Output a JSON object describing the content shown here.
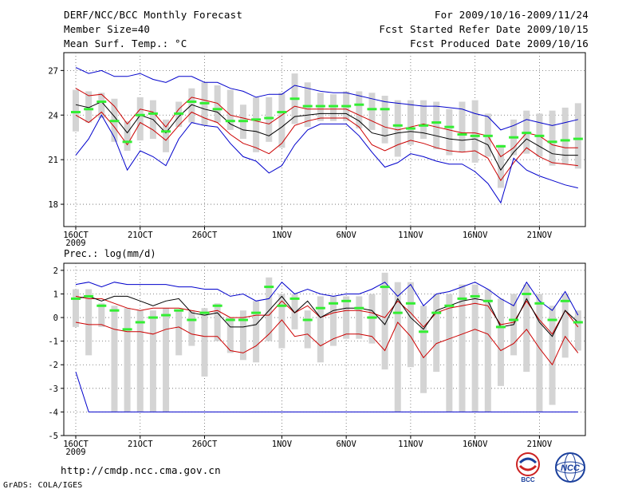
{
  "header": {
    "title": "DERF/NCC/BCC Monthly Forecast",
    "member_size": "Member Size=40",
    "variable": "Mean Surf. Temp.: °C",
    "forecast_period": "For 2009/10/16-2009/11/24",
    "start_refer": "Fcst Started Refer Date 2009/10/15",
    "produced": "Fcst Produced Date 2009/10/16"
  },
  "footer": {
    "url": "http://cmdp.ncc.cma.gov.cn",
    "credit": "GrADS: COLA/IGES",
    "logo_left": "BCC",
    "logo_right": "NCC"
  },
  "chart_data": [
    {
      "type": "line",
      "title": "Mean Surf. Temp.: °C",
      "x_tick_labels": [
        "16OCT",
        "21OCT",
        "26OCT",
        "1NOV",
        "6NOV",
        "11NOV",
        "16NOV",
        "21NOV"
      ],
      "x_tick_days": [
        1,
        6,
        11,
        17,
        22,
        27,
        32,
        37
      ],
      "year_label": "2009",
      "y_ticks": [
        18,
        21,
        24,
        27
      ],
      "ylim": [
        16.5,
        28.2
      ],
      "days": [
        1,
        2,
        3,
        4,
        5,
        6,
        7,
        8,
        9,
        10,
        11,
        12,
        13,
        14,
        15,
        16,
        17,
        18,
        19,
        20,
        21,
        22,
        23,
        24,
        25,
        26,
        27,
        28,
        29,
        30,
        31,
        32,
        33,
        34,
        35,
        36,
        37,
        38,
        39,
        40
      ],
      "series": [
        {
          "name": "max",
          "color": "#0000cc",
          "values": [
            27.2,
            26.8,
            27.0,
            26.6,
            26.6,
            26.8,
            26.4,
            26.2,
            26.6,
            26.6,
            26.2,
            26.2,
            25.8,
            25.6,
            25.2,
            25.4,
            25.4,
            26.0,
            25.8,
            25.6,
            25.5,
            25.5,
            25.3,
            25.1,
            24.9,
            24.8,
            24.7,
            24.6,
            24.6,
            24.5,
            24.4,
            24.1,
            23.9,
            23.0,
            23.3,
            23.7,
            23.5,
            23.3,
            23.5,
            23.7
          ]
        },
        {
          "name": "upper_90",
          "color": "#cc0000",
          "values": [
            25.8,
            25.3,
            25.4,
            24.6,
            23.4,
            24.4,
            24.2,
            23.2,
            24.4,
            25.2,
            25.0,
            24.8,
            24.0,
            23.8,
            23.6,
            23.4,
            24.0,
            24.6,
            24.4,
            24.4,
            24.4,
            24.4,
            24.0,
            23.6,
            23.2,
            23.0,
            23.2,
            23.4,
            23.2,
            23.0,
            22.8,
            22.8,
            22.6,
            21.2,
            21.8,
            22.8,
            22.6,
            22.0,
            21.8,
            21.8
          ]
        },
        {
          "name": "mean",
          "color": "#000000",
          "values": [
            24.7,
            24.5,
            24.9,
            23.9,
            22.8,
            24.0,
            23.7,
            22.8,
            23.9,
            24.7,
            24.4,
            24.2,
            23.4,
            23.0,
            22.9,
            22.6,
            23.2,
            23.9,
            24.0,
            24.1,
            24.1,
            24.1,
            23.6,
            22.8,
            22.6,
            22.8,
            22.9,
            22.8,
            22.6,
            22.4,
            22.3,
            22.4,
            22.0,
            20.3,
            21.5,
            22.4,
            21.9,
            21.4,
            21.3,
            21.3
          ]
        },
        {
          "name": "lower_10",
          "color": "#cc0000",
          "values": [
            24.0,
            23.5,
            24.2,
            23.2,
            22.0,
            23.5,
            23.0,
            22.3,
            23.3,
            24.2,
            23.8,
            23.5,
            22.7,
            22.1,
            21.8,
            21.4,
            22.1,
            23.3,
            23.6,
            23.8,
            23.8,
            23.8,
            23.2,
            22.0,
            21.6,
            22.0,
            22.3,
            22.1,
            21.8,
            21.6,
            21.5,
            21.6,
            21.1,
            19.6,
            20.8,
            21.8,
            21.2,
            20.8,
            20.7,
            20.6
          ]
        },
        {
          "name": "min",
          "color": "#0000cc",
          "values": [
            21.3,
            22.4,
            24.0,
            22.5,
            20.3,
            21.6,
            21.2,
            20.6,
            22.4,
            23.5,
            23.3,
            23.2,
            22.1,
            21.2,
            20.9,
            20.1,
            20.6,
            22.0,
            23.0,
            23.4,
            23.4,
            23.4,
            22.6,
            21.5,
            20.5,
            20.8,
            21.4,
            21.2,
            20.9,
            20.7,
            20.7,
            20.2,
            19.4,
            18.1,
            21.1,
            20.3,
            19.9,
            19.6,
            19.3,
            19.1
          ]
        }
      ],
      "members_median": [
        24.2,
        24.4,
        24.9,
        23.6,
        22.2,
        24.0,
        24.1,
        22.9,
        24.1,
        24.9,
        24.8,
        24.4,
        23.6,
        23.6,
        23.7,
        23.8,
        24.2,
        25.1,
        24.6,
        24.6,
        24.6,
        24.6,
        24.7,
        24.4,
        24.4,
        23.3,
        23.1,
        23.3,
        23.5,
        23.2,
        22.7,
        22.6,
        22.6,
        21.9,
        22.5,
        22.8,
        22.6,
        22.2,
        22.3,
        22.4
      ],
      "members_range": [
        [
          22.9,
          25.7
        ],
        [
          23.5,
          25.6
        ],
        [
          23.8,
          25.5
        ],
        [
          22.2,
          25.1
        ],
        [
          21.6,
          23.6
        ],
        [
          22.3,
          25.2
        ],
        [
          22.4,
          25.0
        ],
        [
          21.5,
          23.7
        ],
        [
          23.2,
          24.9
        ],
        [
          23.5,
          25.8
        ],
        [
          23.3,
          26.2
        ],
        [
          23.5,
          26.0
        ],
        [
          23.0,
          25.7
        ],
        [
          22.4,
          24.7
        ],
        [
          21.5,
          25.2
        ],
        [
          22.2,
          25.2
        ],
        [
          21.8,
          25.5
        ],
        [
          23.4,
          26.8
        ],
        [
          23.2,
          26.2
        ],
        [
          23.6,
          25.5
        ],
        [
          23.6,
          25.4
        ],
        [
          23.6,
          25.6
        ],
        [
          23.1,
          25.6
        ],
        [
          23.0,
          25.5
        ],
        [
          22.1,
          25.3
        ],
        [
          21.2,
          25.0
        ],
        [
          22.0,
          25.0
        ],
        [
          22.4,
          25.0
        ],
        [
          21.7,
          24.9
        ],
        [
          21.3,
          24.4
        ],
        [
          21.5,
          24.9
        ],
        [
          20.8,
          25.0
        ],
        [
          21.2,
          24.1
        ],
        [
          19.1,
          22.0
        ],
        [
          21.3,
          23.7
        ],
        [
          21.4,
          24.3
        ],
        [
          21.2,
          24.1
        ],
        [
          20.6,
          24.3
        ],
        [
          20.7,
          24.5
        ],
        [
          20.4,
          24.8
        ]
      ]
    },
    {
      "type": "line",
      "title": "Prec.: log(mm/d)",
      "x_tick_labels": [
        "16OCT",
        "21OCT",
        "26OCT",
        "1NOV",
        "6NOV",
        "11NOV",
        "16NOV",
        "21NOV"
      ],
      "x_tick_days": [
        1,
        6,
        11,
        17,
        22,
        27,
        32,
        37
      ],
      "year_label": "2009",
      "y_ticks": [
        -5,
        -4,
        -3,
        -2,
        -1,
        0,
        1,
        2
      ],
      "ylim": [
        -5,
        2.3
      ],
      "days": [
        1,
        2,
        3,
        4,
        5,
        6,
        7,
        8,
        9,
        10,
        11,
        12,
        13,
        14,
        15,
        16,
        17,
        18,
        19,
        20,
        21,
        22,
        23,
        24,
        25,
        26,
        27,
        28,
        29,
        30,
        31,
        32,
        33,
        34,
        35,
        36,
        37,
        38,
        39,
        40
      ],
      "series": [
        {
          "name": "max",
          "color": "#0000cc",
          "values": [
            1.4,
            1.5,
            1.3,
            1.5,
            1.4,
            1.4,
            1.4,
            1.4,
            1.3,
            1.3,
            1.2,
            1.2,
            0.9,
            1.0,
            0.7,
            0.8,
            1.5,
            1.0,
            1.2,
            1.0,
            0.9,
            1.0,
            1.0,
            1.2,
            1.5,
            0.9,
            1.4,
            0.5,
            1.0,
            1.1,
            1.3,
            1.5,
            1.2,
            0.8,
            0.5,
            1.5,
            0.7,
            0.3,
            1.1,
            0.1
          ]
        },
        {
          "name": "upper_90",
          "color": "#cc0000",
          "values": [
            0.9,
            0.8,
            0.8,
            0.6,
            0.4,
            0.3,
            0.4,
            0.4,
            0.4,
            0.3,
            0.2,
            0.3,
            0.0,
            0.0,
            0.1,
            0.1,
            0.7,
            0.2,
            0.5,
            0.0,
            0.2,
            0.3,
            0.3,
            0.2,
            0.0,
            0.7,
            0.2,
            -0.4,
            0.2,
            0.4,
            0.5,
            0.6,
            0.5,
            -0.3,
            -0.2,
            0.7,
            -0.1,
            -0.7,
            0.3,
            -0.4
          ]
        },
        {
          "name": "mean",
          "color": "#000000",
          "values": [
            0.8,
            0.9,
            0.7,
            0.9,
            0.9,
            0.7,
            0.5,
            0.7,
            0.8,
            0.2,
            0.1,
            0.2,
            -0.4,
            -0.4,
            -0.3,
            0.3,
            0.9,
            0.2,
            0.7,
            0.0,
            0.3,
            0.4,
            0.4,
            0.3,
            -0.3,
            0.8,
            0.0,
            -0.5,
            0.3,
            0.5,
            0.7,
            0.8,
            0.7,
            -0.4,
            -0.3,
            0.8,
            -0.2,
            -0.8,
            0.3,
            -0.2
          ]
        },
        {
          "name": "lower_10",
          "color": "#cc0000",
          "values": [
            -0.2,
            -0.3,
            -0.3,
            -0.5,
            -0.6,
            -0.6,
            -0.7,
            -0.5,
            -0.4,
            -0.7,
            -0.8,
            -0.8,
            -1.4,
            -1.5,
            -1.2,
            -0.7,
            -0.1,
            -0.8,
            -0.7,
            -1.2,
            -0.9,
            -0.7,
            -0.7,
            -0.8,
            -1.4,
            -0.2,
            -0.8,
            -1.7,
            -1.1,
            -0.9,
            -0.7,
            -0.5,
            -0.7,
            -1.4,
            -1.1,
            -0.5,
            -1.3,
            -2.0,
            -0.8,
            -1.5
          ]
        },
        {
          "name": "min",
          "color": "#0000cc",
          "values": [
            -2.3,
            -4.0,
            -4.0,
            -4.0,
            -4.0,
            -4.0,
            -4.0,
            -4.0,
            -4.0,
            -4.0,
            -4.0,
            -4.0,
            -4.0,
            -4.0,
            -4.0,
            -4.0,
            -4.0,
            -4.0,
            -4.0,
            -4.0,
            -4.0,
            -4.0,
            -4.0,
            -4.0,
            -4.0,
            -4.0,
            -4.0,
            -4.0,
            -4.0,
            -4.0,
            -4.0,
            -4.0,
            -4.0,
            -4.0,
            -4.0,
            -4.0,
            -4.0,
            -4.0,
            -4.0,
            -4.0
          ]
        }
      ],
      "members_median": [
        0.8,
        0.9,
        0.5,
        0.3,
        -0.5,
        -0.2,
        0.0,
        0.1,
        0.3,
        -0.1,
        0.2,
        0.5,
        -0.1,
        -0.1,
        0.2,
        1.3,
        0.5,
        0.8,
        -0.1,
        0.4,
        0.6,
        0.7,
        0.4,
        0.0,
        1.3,
        0.2,
        0.6,
        -0.6,
        0.2,
        0.5,
        0.8,
        0.9,
        0.7,
        -0.4,
        -0.1,
        1.0,
        0.6,
        -0.1,
        0.7,
        -0.2
      ],
      "members_range": [
        [
          -0.4,
          1.2
        ],
        [
          -1.6,
          1.2
        ],
        [
          -0.4,
          0.6
        ],
        [
          -4.0,
          0.5
        ],
        [
          -4.0,
          0.4
        ],
        [
          -4.0,
          0.3
        ],
        [
          -4.0,
          0.3
        ],
        [
          -4.0,
          0.4
        ],
        [
          -1.6,
          0.3
        ],
        [
          -1.2,
          0.3
        ],
        [
          -2.5,
          0.4
        ],
        [
          -1.0,
          0.6
        ],
        [
          -1.5,
          0.0
        ],
        [
          -1.8,
          0.3
        ],
        [
          -1.9,
          0.7
        ],
        [
          -1.0,
          1.7
        ],
        [
          -1.3,
          1.0
        ],
        [
          -0.5,
          1.0
        ],
        [
          -1.3,
          0.3
        ],
        [
          -1.9,
          0.9
        ],
        [
          -1.2,
          0.9
        ],
        [
          -0.9,
          0.9
        ],
        [
          -0.9,
          0.9
        ],
        [
          -1.1,
          1.0
        ],
        [
          -2.2,
          1.9
        ],
        [
          -4.0,
          1.5
        ],
        [
          -2.1,
          1.5
        ],
        [
          -3.2,
          0.5
        ],
        [
          -2.3,
          1.0
        ],
        [
          -4.0,
          1.0
        ],
        [
          -4.0,
          1.4
        ],
        [
          -4.0,
          1.4
        ],
        [
          -4.0,
          1.2
        ],
        [
          -2.9,
          0.8
        ],
        [
          -1.6,
          1.0
        ],
        [
          -2.3,
          1.4
        ],
        [
          -4.0,
          1.0
        ],
        [
          -3.7,
          0.5
        ],
        [
          -1.7,
          1.0
        ],
        [
          -1.4,
          0.3
        ]
      ]
    }
  ]
}
